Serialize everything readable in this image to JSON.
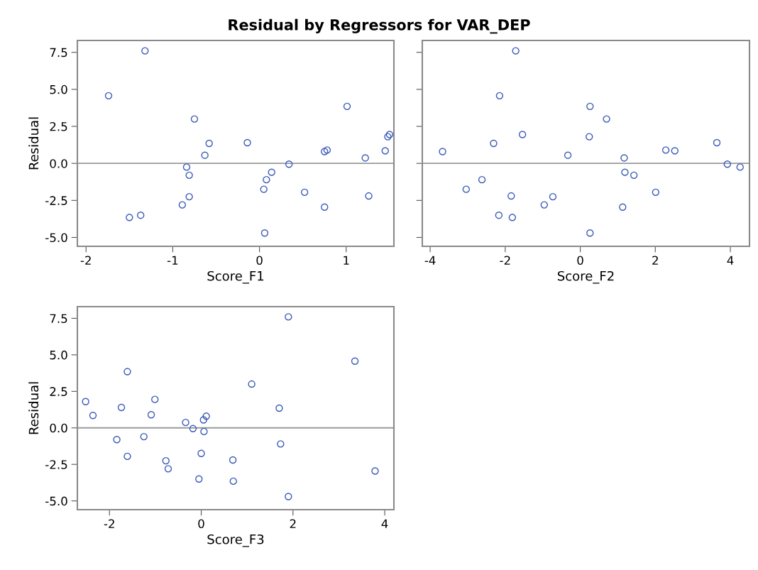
{
  "chart_data": [
    {
      "type": "scatter",
      "title": "Residual by Regressors for VAR_DEP",
      "xlabel": "Score_F1",
      "ylabel": "Residual",
      "marker": "circle",
      "grid": false,
      "x": [
        -1.74,
        -1.32,
        -1.5,
        -1.37,
        -0.75,
        -0.58,
        -0.63,
        -0.84,
        -0.81,
        -0.81,
        -0.89,
        -0.14,
        0.05,
        0.08,
        0.14,
        0.06,
        0.34,
        0.52,
        0.75,
        0.78,
        0.75,
        1.01,
        1.22,
        1.26,
        1.45,
        1.48,
        1.5
      ],
      "series": [
        {
          "color": "#3b5bb8",
          "values": [
            4.57,
            7.6,
            -3.65,
            -3.5,
            3.0,
            1.35,
            0.55,
            -0.25,
            -0.8,
            -2.25,
            -2.8,
            1.4,
            -1.75,
            -1.1,
            -0.6,
            -4.7,
            -0.05,
            -1.95,
            0.8,
            0.9,
            -2.95,
            3.85,
            0.37,
            -2.2,
            0.85,
            1.8,
            1.95
          ]
        }
      ],
      "xlim": [
        -2.1,
        1.55
      ],
      "ylim": [
        -5.6,
        8.3
      ],
      "xticks": [
        -2,
        -1,
        0,
        1
      ],
      "yticks": [
        {
          "value": -5,
          "label": "-5.0"
        },
        {
          "value": -2.5,
          "label": "-2.5"
        },
        {
          "value": 0,
          "label": "0.0"
        },
        {
          "value": 2.5,
          "label": "2.5"
        },
        {
          "value": 5,
          "label": "5.0"
        },
        {
          "value": 7.5,
          "label": "7.5"
        }
      ],
      "ref_lines": [
        {
          "axis": "y",
          "value": 0,
          "color": "#9a9a9a"
        }
      ]
    },
    {
      "type": "scatter",
      "xlabel": "Score_F2",
      "marker": "circle",
      "grid": false,
      "tick_labels": "x",
      "x": [
        -1.72,
        -2.15,
        0.26,
        0.7,
        -1.54,
        0.24,
        -2.31,
        -3.67,
        -0.33,
        1.17,
        2.28,
        2.52,
        3.64,
        3.92,
        4.26,
        1.19,
        1.43,
        -2.62,
        -3.04,
        2.01,
        -1.84,
        -0.73,
        -0.96,
        1.13,
        -2.17,
        -1.81,
        0.26
      ],
      "series": [
        {
          "color": "#3b5bb8",
          "values": [
            7.6,
            4.57,
            3.85,
            3.0,
            1.95,
            1.8,
            1.35,
            0.8,
            0.55,
            0.37,
            0.9,
            0.85,
            1.4,
            -0.05,
            -0.25,
            -0.6,
            -0.8,
            -1.1,
            -1.75,
            -1.95,
            -2.2,
            -2.25,
            -2.8,
            -2.95,
            -3.5,
            -3.65,
            -4.7
          ]
        }
      ],
      "xlim": [
        -4.21,
        4.51
      ],
      "ylim": [
        -5.6,
        8.3
      ],
      "xticks": [
        -4,
        -2,
        0,
        2,
        4
      ],
      "yticks": [
        {
          "value": -5,
          "label": null
        },
        {
          "value": -2.5,
          "label": null
        },
        {
          "value": 0,
          "label": null
        },
        {
          "value": 2.5,
          "label": null
        },
        {
          "value": 5,
          "label": null
        },
        {
          "value": 7.5,
          "label": null
        }
      ],
      "ref_lines": [
        {
          "axis": "y",
          "value": 0,
          "color": "#9a9a9a"
        }
      ]
    },
    {
      "type": "scatter",
      "xlabel": "Score_F3",
      "ylabel": "Residual",
      "marker": "circle",
      "grid": false,
      "x": [
        -2.52,
        -2.36,
        -1.61,
        -1.74,
        -1.84,
        -1.61,
        -1.01,
        -1.09,
        -1.25,
        -0.77,
        -0.72,
        -0.34,
        -0.18,
        -0.05,
        0.0,
        0.05,
        0.11,
        0.06,
        0.69,
        0.7,
        1.1,
        1.7,
        1.73,
        1.9,
        1.9,
        3.35,
        3.79
      ],
      "series": [
        {
          "color": "#3b5bb8",
          "values": [
            1.8,
            0.85,
            3.85,
            1.4,
            -0.8,
            -1.95,
            1.95,
            0.9,
            -0.6,
            -2.25,
            -2.8,
            0.37,
            -0.05,
            -3.5,
            -1.75,
            0.55,
            0.8,
            -0.25,
            -2.2,
            -3.65,
            3.0,
            1.35,
            -1.1,
            7.6,
            -4.7,
            4.57,
            -2.95
          ]
        }
      ],
      "xlim": [
        -2.7,
        4.2
      ],
      "ylim": [
        -5.6,
        8.3
      ],
      "xticks": [
        -2,
        0,
        2,
        4
      ],
      "yticks": [
        {
          "value": -5,
          "label": "-5.0"
        },
        {
          "value": -2.5,
          "label": "-2.5"
        },
        {
          "value": 0,
          "label": "0.0"
        },
        {
          "value": 2.5,
          "label": "2.5"
        },
        {
          "value": 5,
          "label": "5.0"
        },
        {
          "value": 7.5,
          "label": "7.5"
        }
      ],
      "ref_lines": [
        {
          "axis": "y",
          "value": 0,
          "color": "#9a9a9a"
        }
      ]
    }
  ]
}
